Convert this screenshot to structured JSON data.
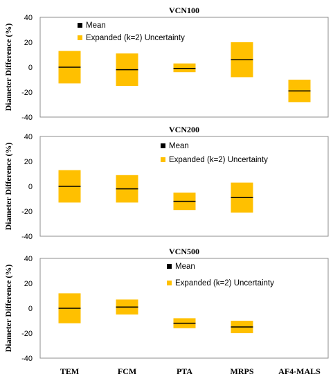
{
  "ylabel": "Diameter Difference (%)",
  "categories": [
    "TEM",
    "FCM",
    "PTA",
    "MRPS",
    "AF4-MALS"
  ],
  "legend": {
    "mean_label": "Mean",
    "uncertainty_label": "Expanded (k=2) Uncertainty"
  },
  "colors": {
    "uncertainty": "#FFC000",
    "mean": "#000000"
  },
  "chart_data": [
    {
      "type": "bar",
      "title": "VCN100",
      "categories": [
        "TEM",
        "FCM",
        "PTA",
        "MRPS",
        "AF4-MALS"
      ],
      "ylim": [
        -40,
        40
      ],
      "yticks": [
        -40,
        -20,
        0,
        20,
        40
      ],
      "legend_position": "top-left",
      "series": [
        {
          "name": "Mean",
          "values": [
            0,
            -2,
            -1,
            6,
            -19
          ]
        },
        {
          "name": "Expanded (k=2) Uncertainty",
          "low": [
            -13,
            -15,
            -4,
            -8,
            -28
          ],
          "high": [
            13,
            11,
            3,
            20,
            -10
          ]
        }
      ]
    },
    {
      "type": "bar",
      "title": "VCN200",
      "categories": [
        "TEM",
        "FCM",
        "PTA",
        "MRPS",
        "AF4-MALS"
      ],
      "ylim": [
        -40,
        40
      ],
      "yticks": [
        -40,
        -20,
        0,
        20,
        40
      ],
      "legend_position": "top-center",
      "series": [
        {
          "name": "Mean",
          "values": [
            0,
            -2,
            -12,
            -9,
            null
          ]
        },
        {
          "name": "Expanded (k=2) Uncertainty",
          "low": [
            -13,
            -13,
            -19,
            -21,
            null
          ],
          "high": [
            13,
            9,
            -5,
            3,
            null
          ]
        }
      ]
    },
    {
      "type": "bar",
      "title": "VCN500",
      "categories": [
        "TEM",
        "FCM",
        "PTA",
        "MRPS",
        "AF4-MALS"
      ],
      "ylim": [
        -40,
        40
      ],
      "yticks": [
        -40,
        -20,
        0,
        20,
        40
      ],
      "legend_position": "top-center",
      "series": [
        {
          "name": "Mean",
          "values": [
            0,
            1,
            -12,
            -15,
            null
          ]
        },
        {
          "name": "Expanded (k=2) Uncertainty",
          "low": [
            -12,
            -5,
            -16,
            -20,
            null
          ],
          "high": [
            12,
            7,
            -8,
            -10,
            null
          ]
        }
      ]
    }
  ]
}
